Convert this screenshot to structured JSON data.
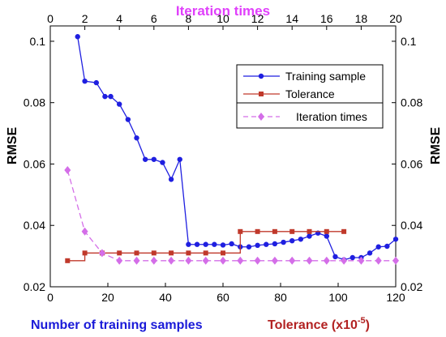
{
  "chart_data": {
    "type": "line",
    "top_axis_label": "Iteration times",
    "left_ylabel": "RMSE",
    "right_ylabel": "RMSE",
    "bottom_label_1": "Number of training samples",
    "bottom_label_2_base": "Tolerance (x10",
    "bottom_label_2_sup": "-5",
    "bottom_label_2_end": ")",
    "xlim": [
      0,
      120
    ],
    "ylim": [
      0.02,
      0.105
    ],
    "top_xlim": [
      0,
      20
    ],
    "x_ticks": [
      "0",
      "20",
      "40",
      "60",
      "80",
      "100",
      "120"
    ],
    "x_tick_values": [
      0,
      20,
      40,
      60,
      80,
      100,
      120
    ],
    "top_ticks": [
      "0",
      "2",
      "4",
      "6",
      "8",
      "10",
      "12",
      "14",
      "16",
      "18",
      "20"
    ],
    "top_tick_values": [
      0,
      2,
      4,
      6,
      8,
      10,
      12,
      14,
      16,
      18,
      20
    ],
    "y_ticks": [
      "0.02",
      "0.04",
      "0.06",
      "0.08",
      "0.1"
    ],
    "y_tick_values": [
      0.02,
      0.04,
      0.06,
      0.08,
      0.1
    ],
    "legend_position": "top-right",
    "colors": {
      "training": "#1f1fe0",
      "tolerance": "#c0392b",
      "iteration": "#d46ee8",
      "top_axis_text": "#e040fb",
      "bottom_label_1": "#1a1ad8",
      "bottom_label_2": "#b22222"
    },
    "series": [
      {
        "name": "Training sample",
        "axis": "bottom",
        "x": [
          9.5,
          12,
          16,
          19,
          21,
          24,
          27,
          30,
          33,
          36,
          39,
          42,
          45,
          48,
          51,
          54,
          57,
          60,
          63,
          66,
          69,
          72,
          75,
          78,
          81,
          84,
          87,
          90,
          93,
          96,
          99,
          102,
          105,
          108,
          111,
          114,
          117,
          120
        ],
        "y": [
          0.1015,
          0.087,
          0.0865,
          0.082,
          0.082,
          0.0795,
          0.0745,
          0.0685,
          0.0615,
          0.0615,
          0.0605,
          0.055,
          0.0615,
          0.0338,
          0.0338,
          0.0338,
          0.0338,
          0.0336,
          0.034,
          0.033,
          0.033,
          0.0335,
          0.0338,
          0.034,
          0.0345,
          0.035,
          0.0355,
          0.0365,
          0.0375,
          0.0365,
          0.0298,
          0.0288,
          0.0295,
          0.0295,
          0.031,
          0.033,
          0.0332,
          0.0355
        ]
      },
      {
        "name": "Tolerance",
        "axis": "top",
        "x": [
          1,
          2,
          3,
          4,
          5,
          6,
          7,
          8,
          9,
          10,
          11,
          12,
          13,
          14,
          15,
          16,
          17
        ],
        "y": [
          0.0285,
          0.031,
          0.031,
          0.031,
          0.031,
          0.031,
          0.031,
          0.031,
          0.031,
          0.031,
          0.038,
          0.038,
          0.038,
          0.038,
          0.038,
          0.038,
          0.038
        ]
      },
      {
        "name": "Iteration times",
        "axis": "top",
        "x": [
          1,
          2,
          3,
          4,
          5,
          6,
          7,
          8,
          9,
          10,
          11,
          12,
          13,
          14,
          15,
          16,
          17,
          18,
          19,
          20
        ],
        "y": [
          0.058,
          0.038,
          0.031,
          0.0285,
          0.0285,
          0.0285,
          0.0285,
          0.0285,
          0.0285,
          0.0285,
          0.0285,
          0.0285,
          0.0285,
          0.0285,
          0.0285,
          0.0285,
          0.0285,
          0.0285,
          0.0285,
          0.0285
        ]
      }
    ]
  }
}
